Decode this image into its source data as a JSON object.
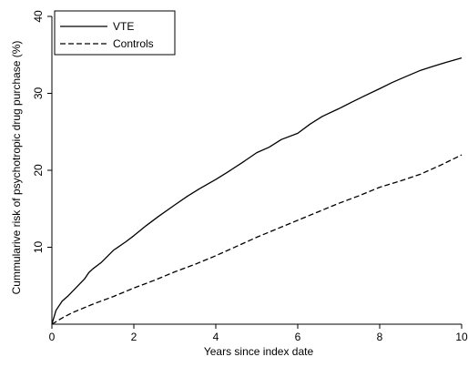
{
  "chart_data": {
    "type": "line",
    "title": "",
    "xlabel": "Years since index date",
    "ylabel": "Cummularive risk of psychotropic drug purchase (%)",
    "xlim": [
      0,
      10
    ],
    "ylim": [
      0,
      40
    ],
    "xticks": [
      0,
      2,
      4,
      6,
      8,
      10
    ],
    "yticks": [
      10,
      20,
      30,
      40
    ],
    "grid": false,
    "legend_position": "top-left",
    "series": [
      {
        "name": "VTE",
        "style": "solid",
        "color": "#000000",
        "x": [
          0,
          0.1,
          0.25,
          0.4,
          0.6,
          0.8,
          0.9,
          1.0,
          1.2,
          1.5,
          1.8,
          2.0,
          2.3,
          2.6,
          3.0,
          3.3,
          3.6,
          4.0,
          4.3,
          4.7,
          5.0,
          5.3,
          5.6,
          6.0,
          6.3,
          6.6,
          7.0,
          7.3,
          7.6,
          8.0,
          8.3,
          8.6,
          9.0,
          9.3,
          9.6,
          10.0
        ],
        "y": [
          0,
          1.8,
          3.0,
          3.7,
          4.8,
          5.9,
          6.7,
          7.2,
          8.0,
          9.6,
          10.7,
          11.5,
          12.8,
          14.0,
          15.5,
          16.6,
          17.6,
          18.8,
          19.8,
          21.2,
          22.3,
          23.0,
          24.0,
          24.8,
          26.0,
          27.0,
          28.0,
          28.8,
          29.6,
          30.6,
          31.4,
          32.1,
          33.0,
          33.5,
          34.0,
          34.6
        ]
      },
      {
        "name": "Controls",
        "style": "dashed",
        "color": "#000000",
        "x": [
          0,
          0.25,
          0.5,
          1.0,
          1.5,
          2.0,
          2.5,
          3.0,
          3.5,
          4.0,
          4.5,
          5.0,
          5.5,
          6.0,
          6.5,
          7.0,
          7.5,
          8.0,
          8.5,
          9.0,
          9.5,
          10.0
        ],
        "y": [
          0,
          0.8,
          1.5,
          2.6,
          3.6,
          4.7,
          5.7,
          6.8,
          7.8,
          8.9,
          10.1,
          11.3,
          12.4,
          13.5,
          14.6,
          15.7,
          16.7,
          17.8,
          18.6,
          19.5,
          20.7,
          22.0
        ]
      }
    ]
  }
}
